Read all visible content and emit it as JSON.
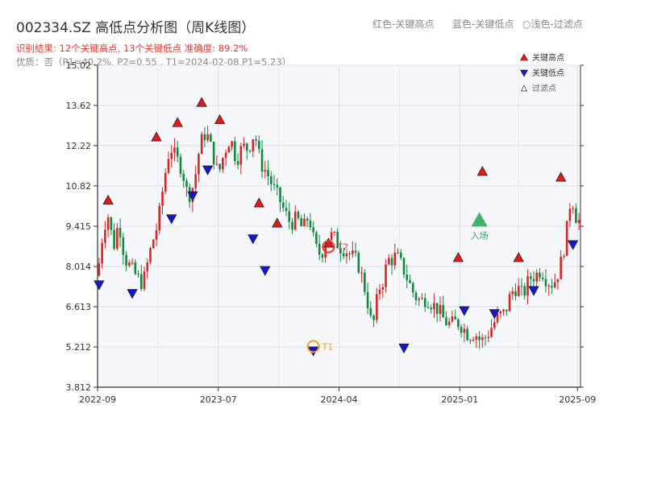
{
  "header": {
    "title": "002334.SZ 高低点分析图（周K线图）",
    "result_line": "识别结果: 12个关键高点, 13个关键低点  准确度: 89.2%",
    "quality_line": "优质：否（P1=40.2%, P2=0.55 , T1=2024-02-08,P1=5.23）",
    "hints": [
      "红色-关键高点",
      "蓝色-关键低点",
      "○浅色-过滤点"
    ]
  },
  "colors": {
    "up": "#d62728",
    "down": "#0f8a3c",
    "high_marker": "#e61919",
    "low_marker": "#1414d9",
    "t1": "#f0a020",
    "t2": "#e8382c",
    "entry": "#2fa85a",
    "plot_bg": "#f5f7fa",
    "grid": "#dde2ea"
  },
  "chart_data": {
    "type": "candlestick",
    "y_ticks": [
      3.812,
      5.212,
      6.613,
      8.014,
      9.415,
      10.82,
      12.22,
      13.62,
      15.02
    ],
    "y_tick_labels": [
      "3.812",
      "5.212",
      "6.613",
      "8.014",
      "9.415",
      "10.82",
      "12.22",
      "13.62",
      "15.02"
    ],
    "ylim": [
      3.812,
      15.02
    ],
    "x_ticks": [
      "2022-09",
      "2023-07",
      "2024-04",
      "2025-01",
      "2025-09"
    ],
    "x_range": [
      0,
      160
    ],
    "x_tick_positions": [
      0,
      40,
      80,
      120,
      159
    ],
    "legend": {
      "entries": [
        {
          "label": "关键高点",
          "symbol": "high"
        },
        {
          "label": "关键低点",
          "symbol": "low"
        },
        {
          "label": "过滤点",
          "symbol": "filtered"
        }
      ],
      "placement": "top-right"
    },
    "price_path": [
      [
        0,
        7.7
      ],
      [
        2,
        9.4
      ],
      [
        4,
        9.9
      ],
      [
        5,
        8.5
      ],
      [
        7,
        9.6
      ],
      [
        9,
        8.3
      ],
      [
        12,
        7.8
      ],
      [
        15,
        7.4
      ],
      [
        18,
        8.8
      ],
      [
        20,
        9.5
      ],
      [
        22,
        11.0
      ],
      [
        24,
        12.2
      ],
      [
        26,
        11.8
      ],
      [
        28,
        11.4
      ],
      [
        30,
        10.4
      ],
      [
        32,
        10.9
      ],
      [
        34,
        12.3
      ],
      [
        36,
        12.7
      ],
      [
        38,
        12.0
      ],
      [
        40,
        11.2
      ],
      [
        42,
        12.0
      ],
      [
        44,
        12.5
      ],
      [
        46,
        11.7
      ],
      [
        48,
        12.2
      ],
      [
        50,
        12.1
      ],
      [
        52,
        12.7
      ],
      [
        54,
        11.6
      ],
      [
        56,
        11.3
      ],
      [
        58,
        10.8
      ],
      [
        60,
        10.4
      ],
      [
        62,
        9.9
      ],
      [
        64,
        9.5
      ],
      [
        66,
        9.7
      ],
      [
        68,
        9.3
      ],
      [
        70,
        9.8
      ],
      [
        72,
        8.7
      ],
      [
        74,
        8.4
      ],
      [
        76,
        9.0
      ],
      [
        78,
        9.1
      ],
      [
        80,
        8.7
      ],
      [
        82,
        8.6
      ],
      [
        84,
        8.4
      ],
      [
        86,
        8.2
      ],
      [
        88,
        7.5
      ],
      [
        90,
        6.5
      ],
      [
        91,
        5.8
      ],
      [
        92,
        6.4
      ],
      [
        93,
        7.2
      ],
      [
        95,
        7.6
      ],
      [
        96,
        8.3
      ],
      [
        97,
        8.2
      ],
      [
        99,
        8.4
      ],
      [
        101,
        8.0
      ],
      [
        103,
        7.5
      ],
      [
        105,
        7.0
      ],
      [
        107,
        6.8
      ],
      [
        109,
        6.9
      ],
      [
        111,
        6.7
      ],
      [
        113,
        6.5
      ],
      [
        115,
        6.1
      ],
      [
        117,
        6.0
      ],
      [
        119,
        6.1
      ],
      [
        121,
        5.9
      ],
      [
        123,
        5.6
      ],
      [
        125,
        5.7
      ],
      [
        127,
        5.4
      ],
      [
        129,
        5.6
      ],
      [
        131,
        6.0
      ],
      [
        133,
        6.3
      ],
      [
        135,
        6.4
      ],
      [
        137,
        7.1
      ],
      [
        139,
        7.3
      ],
      [
        141,
        7.0
      ],
      [
        143,
        7.6
      ],
      [
        145,
        7.7
      ],
      [
        147,
        7.9
      ],
      [
        149,
        7.5
      ],
      [
        151,
        7.4
      ],
      [
        153,
        7.9
      ],
      [
        155,
        8.9
      ],
      [
        157,
        10.6
      ],
      [
        158,
        9.9
      ],
      [
        159,
        9.6
      ]
    ],
    "key_highs": [
      {
        "x": 3,
        "price": 10.1
      },
      {
        "x": 19,
        "price": 12.3
      },
      {
        "x": 26,
        "price": 12.8
      },
      {
        "x": 34,
        "price": 13.5
      },
      {
        "x": 40,
        "price": 12.9
      },
      {
        "x": 53,
        "price": 10.0
      },
      {
        "x": 59,
        "price": 9.3
      },
      {
        "x": 119,
        "price": 8.1
      },
      {
        "x": 127,
        "price": 11.1
      },
      {
        "x": 139,
        "price": 8.1
      },
      {
        "x": 153,
        "price": 10.9
      },
      {
        "x": 76,
        "price": 8.6
      }
    ],
    "key_lows": [
      {
        "x": 0,
        "price": 7.6
      },
      {
        "x": 11,
        "price": 7.3
      },
      {
        "x": 24,
        "price": 9.9
      },
      {
        "x": 31,
        "price": 10.7
      },
      {
        "x": 36,
        "price": 11.6
      },
      {
        "x": 51,
        "price": 9.2
      },
      {
        "x": 55,
        "price": 8.1
      },
      {
        "x": 71,
        "price": 5.3
      },
      {
        "x": 101,
        "price": 5.4
      },
      {
        "x": 121,
        "price": 6.7
      },
      {
        "x": 131,
        "price": 6.6
      },
      {
        "x": 144,
        "price": 7.4
      },
      {
        "x": 157,
        "price": 9.0
      }
    ],
    "t1": {
      "x": 71,
      "price": 5.23,
      "label": "T1"
    },
    "t2": {
      "x": 76,
      "price": 8.7,
      "label": "T2"
    },
    "entry": {
      "x": 126,
      "price": 9.6,
      "label": "入场"
    }
  }
}
